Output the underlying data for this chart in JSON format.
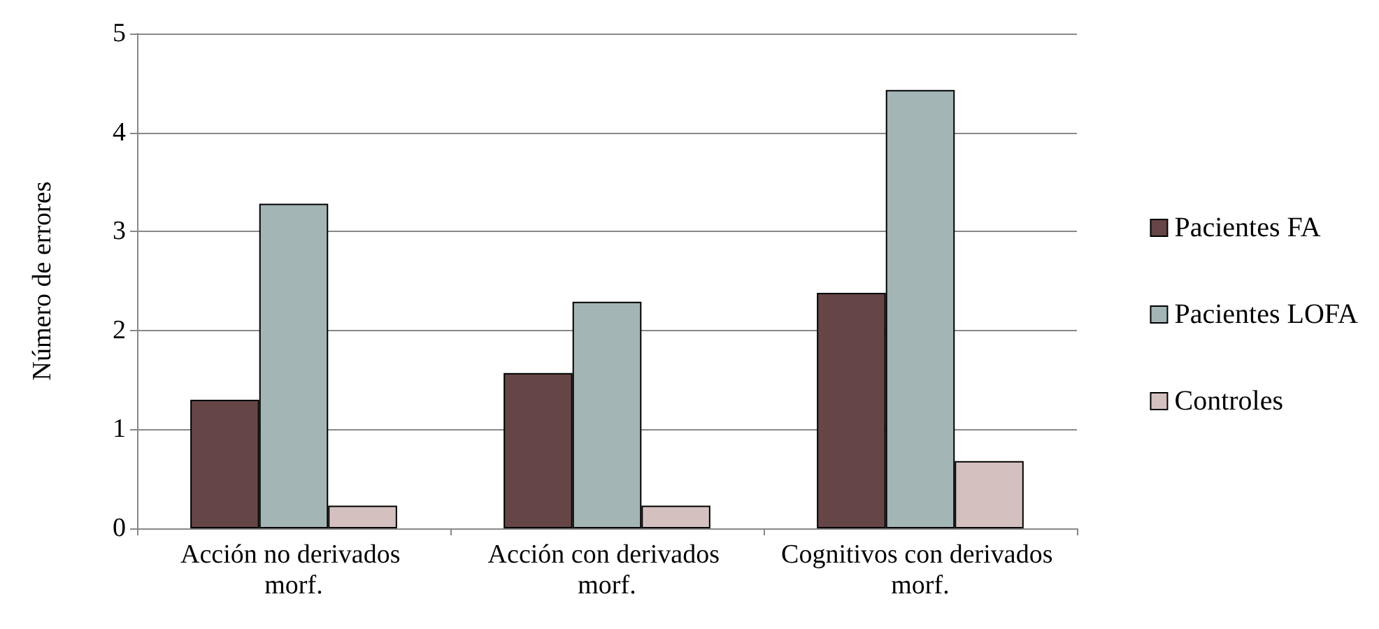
{
  "chart_data": {
    "type": "bar",
    "ylabel": "Número de errores",
    "categories": [
      "Acción no derivados morf.",
      "Acción con derivados morf.",
      "Cognitivos con derivados morf."
    ],
    "series": [
      {
        "name": "Pacientes FA",
        "color": "#654545",
        "values": [
          1.3,
          1.57,
          2.38
        ]
      },
      {
        "name": "Pacientes LOFA",
        "color": "#a3b6b5",
        "values": [
          3.28,
          2.29,
          4.43
        ]
      },
      {
        "name": "Controles",
        "color": "#d5c0c0",
        "values": [
          0.23,
          0.23,
          0.68
        ]
      }
    ],
    "ylim": [
      0,
      5
    ],
    "yticks": [
      0,
      1,
      2,
      3,
      4,
      5
    ],
    "grid": "y",
    "legend": "right"
  }
}
